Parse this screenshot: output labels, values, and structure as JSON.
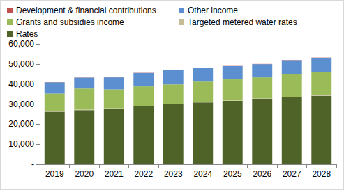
{
  "chart_data": {
    "type": "bar",
    "stacked": true,
    "legend": "top",
    "grid": false,
    "categories": [
      "2019",
      "2020",
      "2021",
      "2022",
      "2023",
      "2024",
      "2025",
      "2026",
      "2027",
      "2028"
    ],
    "series": [
      {
        "name": "Rates",
        "color": "#4f6228",
        "values": [
          26200,
          27000,
          27700,
          28800,
          29800,
          30800,
          31600,
          32600,
          33300,
          34100
        ]
      },
      {
        "name": "Targeted metered water rates",
        "color": "#c4bd97",
        "values": [
          200,
          200,
          200,
          200,
          200,
          200,
          200,
          200,
          200,
          200
        ]
      },
      {
        "name": "Grants and subsidies income",
        "color": "#9bbb59",
        "values": [
          8800,
          10500,
          9400,
          9800,
          9800,
          10200,
          10500,
          10500,
          11300,
          11500
        ]
      },
      {
        "name": "Other income",
        "color": "#5b8fd0",
        "values": [
          5600,
          5500,
          6000,
          6700,
          7100,
          6700,
          6600,
          6600,
          7100,
          7300
        ]
      },
      {
        "name": "Development & financial contributions",
        "color": "#c0504d",
        "values": [
          100,
          100,
          100,
          100,
          100,
          100,
          100,
          100,
          100,
          100
        ]
      }
    ],
    "ylim": [
      0,
      60000
    ],
    "yticks": [
      {
        "value": 0,
        "label": "-"
      },
      {
        "value": 10000,
        "label": "10,000"
      },
      {
        "value": 20000,
        "label": "20,000"
      },
      {
        "value": 30000,
        "label": "30,000"
      },
      {
        "value": 40000,
        "label": "40,000"
      },
      {
        "value": 50000,
        "label": "50,000"
      },
      {
        "value": 60000,
        "label": "60,000"
      }
    ]
  }
}
